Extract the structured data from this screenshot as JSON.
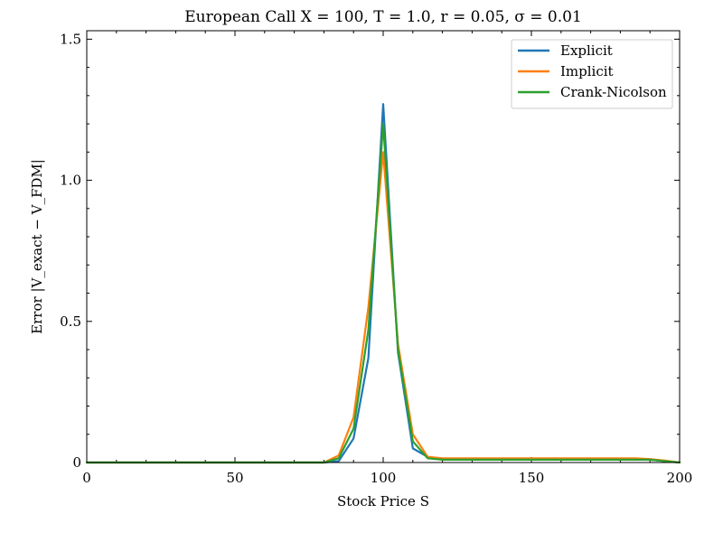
{
  "chart_data": {
    "type": "line",
    "title": "European Call   X = 100, T = 1.0, r = 0.05, σ = 0.01",
    "xlabel": "Stock Price S",
    "ylabel": "Error |V_exact − V_FDM|",
    "xlim": [
      0,
      200
    ],
    "ylim": [
      0,
      1.53
    ],
    "xticks": [
      0,
      50,
      100,
      150,
      200
    ],
    "yticks": [
      0,
      0.5,
      1.0,
      1.5
    ],
    "xtick_labels": [
      "0",
      "50",
      "100",
      "150",
      "200"
    ],
    "ytick_labels": [
      "0",
      "0.5",
      "1.0",
      "1.5"
    ],
    "grid": false,
    "legend": "top-right",
    "x": [
      0,
      5,
      10,
      15,
      20,
      25,
      30,
      35,
      40,
      45,
      50,
      55,
      60,
      65,
      70,
      75,
      80,
      85,
      90,
      95,
      100,
      105,
      110,
      115,
      120,
      125,
      130,
      135,
      140,
      145,
      150,
      155,
      160,
      165,
      170,
      175,
      180,
      185,
      190,
      195,
      200
    ],
    "series": [
      {
        "name": "Explicit",
        "color": "#1f77b4",
        "values": [
          0,
          0,
          0,
          0,
          0,
          0,
          0,
          0,
          0,
          0,
          0,
          0,
          0,
          0,
          0,
          0,
          0,
          0.005,
          0.085,
          0.37,
          1.27,
          0.39,
          0.05,
          0.02,
          0.01,
          0.01,
          0.01,
          0.01,
          0.01,
          0.01,
          0.01,
          0.01,
          0.01,
          0.01,
          0.01,
          0.01,
          0.01,
          0.01,
          0.01,
          0.005,
          0
        ]
      },
      {
        "name": "Implicit",
        "color": "#ff7f0e",
        "values": [
          0,
          0,
          0,
          0,
          0,
          0,
          0,
          0,
          0,
          0,
          0,
          0,
          0,
          0,
          0,
          0,
          0,
          0.025,
          0.16,
          0.55,
          1.1,
          0.42,
          0.1,
          0.02,
          0.015,
          0.015,
          0.015,
          0.015,
          0.015,
          0.015,
          0.015,
          0.015,
          0.015,
          0.015,
          0.015,
          0.015,
          0.015,
          0.015,
          0.012,
          0.007,
          0
        ]
      },
      {
        "name": "Crank-Nicolson",
        "color": "#2ca02c",
        "values": [
          0,
          0,
          0,
          0,
          0,
          0,
          0,
          0,
          0,
          0,
          0,
          0,
          0,
          0,
          0,
          0,
          0,
          0.015,
          0.12,
          0.47,
          1.2,
          0.4,
          0.075,
          0.015,
          0.01,
          0.01,
          0.01,
          0.01,
          0.01,
          0.01,
          0.01,
          0.01,
          0.01,
          0.01,
          0.01,
          0.01,
          0.01,
          0.01,
          0.01,
          0.005,
          0
        ]
      }
    ]
  }
}
